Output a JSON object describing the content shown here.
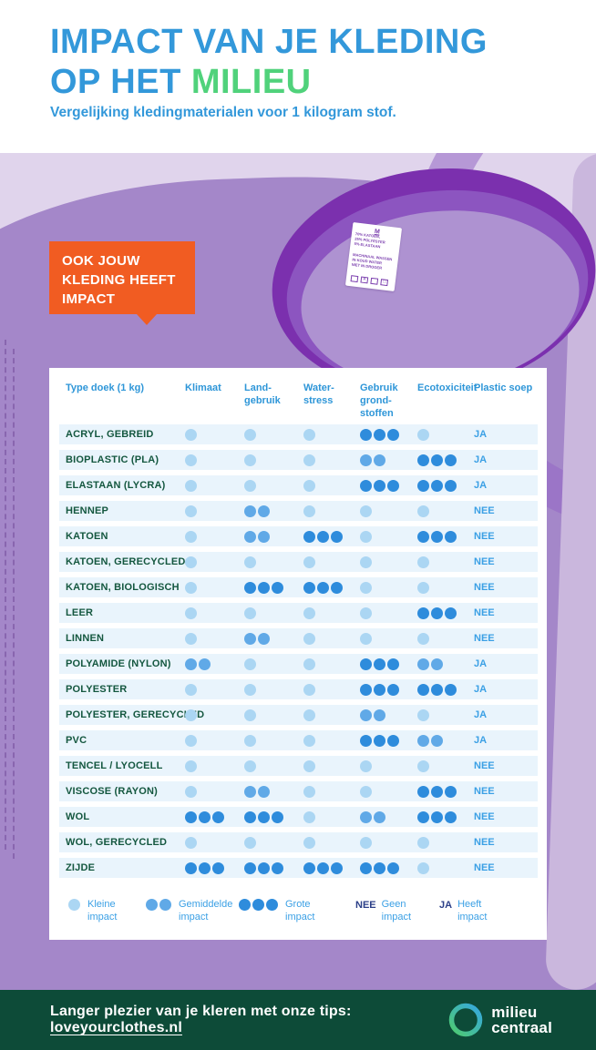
{
  "header": {
    "title_line1": "IMPACT VAN JE KLEDING",
    "title_line2_blue": "OP HET ",
    "title_line2_green": "MILIEU",
    "subtitle": "Vergelijking kledingmaterialen voor 1 kilogram stof."
  },
  "callout": {
    "text": "OOK JOUW\nKLEDING HEEFT\nIMPACT"
  },
  "shirt_tag": {
    "size": "M",
    "composition": "70% KATOEN,\n25% POLYESTER\n5% ELASTAAN",
    "care": "MACHINAAL WASSEN\nIN KOUD WATER\nNIET IN DROGER"
  },
  "table": {
    "header": {
      "material": "Type doek (1 kg)",
      "columns": [
        "Klimaat",
        "Land-\ngebruik",
        "Water-\nstress",
        "Gebruik\ngrond-\nstoffen",
        "Ecotoxiciteit",
        "Plastic soep"
      ]
    }
  },
  "chart_data": {
    "type": "table",
    "title": "Impact van je kleding op het milieu",
    "subtitle": "Vergelijking kledingmaterialen voor 1 kilogram stof",
    "value_scale": {
      "1": "Kleine impact",
      "2": "Gemiddelde impact",
      "3": "Grote impact"
    },
    "columns": [
      "Klimaat",
      "Landgebruik",
      "Waterstress",
      "Gebruik grondstoffen",
      "Ecotoxiciteit"
    ],
    "plastic_soep_column": "Plastic soep",
    "rows": [
      {
        "label": "ACRYL, GEBREID",
        "values": [
          1,
          1,
          1,
          3,
          1
        ],
        "plastic_soep": "JA"
      },
      {
        "label": "BIOPLASTIC (PLA)",
        "values": [
          1,
          1,
          1,
          2,
          3
        ],
        "plastic_soep": "JA"
      },
      {
        "label": "ELASTAAN (LYCRA)",
        "values": [
          1,
          1,
          1,
          3,
          3
        ],
        "plastic_soep": "JA"
      },
      {
        "label": "HENNEP",
        "values": [
          1,
          2,
          1,
          1,
          1
        ],
        "plastic_soep": "NEE"
      },
      {
        "label": "KATOEN",
        "values": [
          1,
          2,
          3,
          1,
          3
        ],
        "plastic_soep": "NEE"
      },
      {
        "label": "KATOEN, GERECYCLED",
        "values": [
          1,
          1,
          1,
          1,
          1
        ],
        "plastic_soep": "NEE"
      },
      {
        "label": "KATOEN, BIOLOGISCH",
        "values": [
          1,
          3,
          3,
          1,
          1
        ],
        "plastic_soep": "NEE"
      },
      {
        "label": "LEER",
        "values": [
          1,
          1,
          1,
          1,
          3
        ],
        "plastic_soep": "NEE"
      },
      {
        "label": "LINNEN",
        "values": [
          1,
          2,
          1,
          1,
          1
        ],
        "plastic_soep": "NEE"
      },
      {
        "label": "POLYAMIDE (NYLON)",
        "values": [
          2,
          1,
          1,
          3,
          2
        ],
        "plastic_soep": "JA"
      },
      {
        "label": "POLYESTER",
        "values": [
          1,
          1,
          1,
          3,
          3
        ],
        "plastic_soep": "JA"
      },
      {
        "label": "POLYESTER, GERECYCLED",
        "values": [
          1,
          1,
          1,
          2,
          1
        ],
        "plastic_soep": "JA"
      },
      {
        "label": "PVC",
        "values": [
          1,
          1,
          1,
          3,
          2
        ],
        "plastic_soep": "JA"
      },
      {
        "label": "TENCEL / LYOCELL",
        "values": [
          1,
          1,
          1,
          1,
          1
        ],
        "plastic_soep": "NEE"
      },
      {
        "label": "VISCOSE (RAYON)",
        "values": [
          1,
          2,
          1,
          1,
          3
        ],
        "plastic_soep": "NEE"
      },
      {
        "label": "WOL",
        "values": [
          3,
          3,
          1,
          2,
          3
        ],
        "plastic_soep": "NEE"
      },
      {
        "label": "WOL, GERECYCLED",
        "values": [
          1,
          1,
          1,
          1,
          1
        ],
        "plastic_soep": "NEE"
      },
      {
        "label": "ZIJDE",
        "values": [
          3,
          3,
          3,
          3,
          1
        ],
        "plastic_soep": "NEE"
      }
    ]
  },
  "legend": {
    "levels": [
      {
        "count": 1,
        "label": "Kleine\nimpact"
      },
      {
        "count": 2,
        "label": "Gemiddelde\nimpact"
      },
      {
        "count": 3,
        "label": "Grote\nimpact"
      }
    ],
    "flags": [
      {
        "key": "NEE",
        "label": "Geen\nimpact"
      },
      {
        "key": "JA",
        "label": "Heeft\nimpact"
      }
    ]
  },
  "footer": {
    "text_prefix": "Langer plezier van je kleren met onze tips: ",
    "link": "loveyourclothes.nl",
    "logo_line1": "milieu",
    "logo_line2": "centraal"
  },
  "colors": {
    "title_blue": "#3398da",
    "title_green": "#50d27b",
    "callout_orange": "#f15c22",
    "body_purple": "#a487c9",
    "collar_dark": "#7b30ae",
    "row_stripe": "#e9f4fc",
    "material_green": "#14573f",
    "dot_small": "#abd6f3",
    "dot_medium": "#60a9e7",
    "dot_large": "#2e8cdc",
    "yes_no_blue": "#3ba0e5",
    "legend_navy": "#2b3f88",
    "footer_green": "#0d4b38",
    "header_blue": "#2e96d8"
  }
}
